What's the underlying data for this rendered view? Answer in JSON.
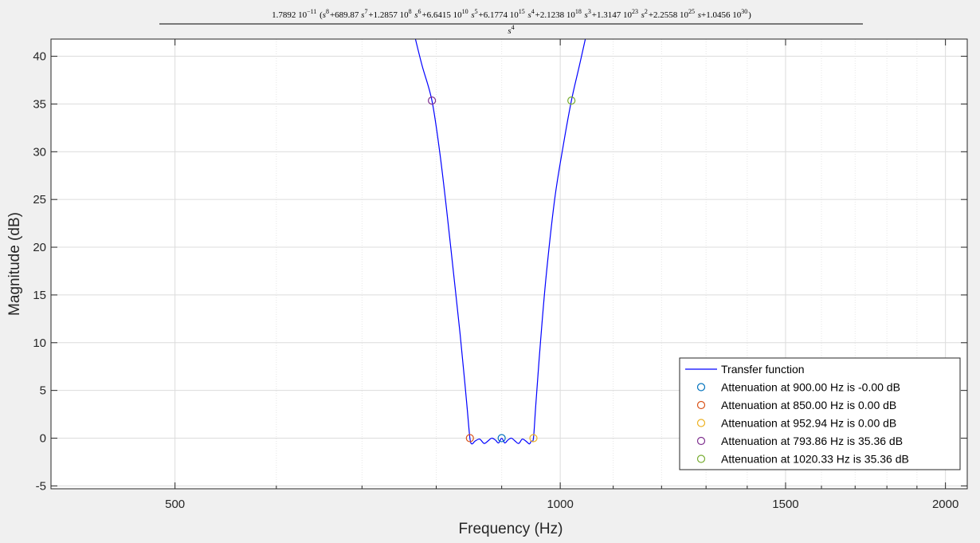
{
  "chart_data": {
    "type": "line",
    "title": {
      "numerator_prefix": "1.7892 10",
      "numerator_prefix_exp": "−11",
      "numerator_terms": [
        {
          "coef": "",
          "power": "8",
          "sep": ""
        },
        {
          "coef": "689.87 ",
          "power": "7",
          "sep": "+"
        },
        {
          "coef": "1.2857 10",
          "coef_exp": "8",
          "power": "6",
          "sep": "+"
        },
        {
          "coef": "6.6415 10",
          "coef_exp": "10",
          "power": "5",
          "sep": "+"
        },
        {
          "coef": "6.1774 10",
          "coef_exp": "15",
          "power": "4",
          "sep": "+"
        },
        {
          "coef": "2.1238 10",
          "coef_exp": "18",
          "power": "3",
          "sep": "+"
        },
        {
          "coef": "1.3147 10",
          "coef_exp": "23",
          "power": "2",
          "sep": "+"
        },
        {
          "coef": "2.2558 10",
          "coef_exp": "25",
          "power": "",
          "sep": "+"
        },
        {
          "coef": "1.0456 10",
          "coef_exp": "30",
          "power": null,
          "sep": "+"
        }
      ],
      "denominator": "s",
      "denominator_exp": "4"
    },
    "xlabel": "Frequency (Hz)",
    "ylabel": "Magnitude (dB)",
    "xscale": "log",
    "xlim": [
      400,
      2080
    ],
    "ylim": [
      -5.3,
      41.8
    ],
    "xticks": [
      500,
      1000,
      1500,
      2000
    ],
    "xtick_labels": [
      "500",
      "1000",
      "1500",
      "2000"
    ],
    "yticks": [
      -5,
      0,
      5,
      10,
      15,
      20,
      25,
      30,
      35,
      40
    ],
    "ytick_labels": [
      "-5",
      "0",
      "5",
      "10",
      "15",
      "20",
      "25",
      "30",
      "35",
      "40"
    ],
    "grid": true,
    "legend_position": "bottom-right",
    "series": [
      {
        "name": "Transfer function",
        "style": "line",
        "color": "#0000ff",
        "x": [
          770.0,
          780.0,
          793.86,
          805.0,
          815.0,
          825.0,
          835.0,
          842.0,
          846.0,
          850.0,
          853.0,
          858.0,
          865.0,
          872.0,
          878.0,
          884.0,
          890.0,
          895.0,
          900.0,
          905.0,
          910.0,
          916.0,
          922.0,
          928.0,
          934.0,
          940.0,
          946.0,
          949.0,
          952.94,
          957.0,
          965.0,
          975.0,
          990.0,
          1005.0,
          1020.33,
          1035.0,
          1047.0
        ],
        "y": [
          42.0,
          39.0,
          35.36,
          30.0,
          24.0,
          17.5,
          11.0,
          6.0,
          3.0,
          0.0,
          -0.6,
          -0.3,
          -0.1,
          -0.55,
          -0.3,
          0.0,
          -0.2,
          -0.5,
          0.0,
          -0.5,
          -0.2,
          0.0,
          -0.3,
          -0.55,
          -0.1,
          -0.3,
          -0.6,
          -0.3,
          0.0,
          3.5,
          10.0,
          17.0,
          25.0,
          30.5,
          35.36,
          39.0,
          42.0
        ]
      },
      {
        "name": "Attenuation at 900.00 Hz is -0.00 dB",
        "style": "marker",
        "color": "#0072bd",
        "x": [
          900.0
        ],
        "y": [
          0.0
        ]
      },
      {
        "name": "Attenuation at 850.00 Hz is 0.00 dB",
        "style": "marker",
        "color": "#d95319",
        "x": [
          850.0
        ],
        "y": [
          0.0
        ]
      },
      {
        "name": "Attenuation at 952.94 Hz is 0.00 dB",
        "style": "marker",
        "color": "#edb120",
        "x": [
          952.94
        ],
        "y": [
          0.0
        ]
      },
      {
        "name": "Attenuation at 793.86 Hz is 35.36 dB",
        "style": "marker",
        "color": "#7e2f8e",
        "x": [
          793.86
        ],
        "y": [
          35.36
        ]
      },
      {
        "name": "Attenuation at 1020.33 Hz is 35.36 dB",
        "style": "marker",
        "color": "#77ac30",
        "x": [
          1020.33
        ],
        "y": [
          35.36
        ]
      }
    ]
  }
}
